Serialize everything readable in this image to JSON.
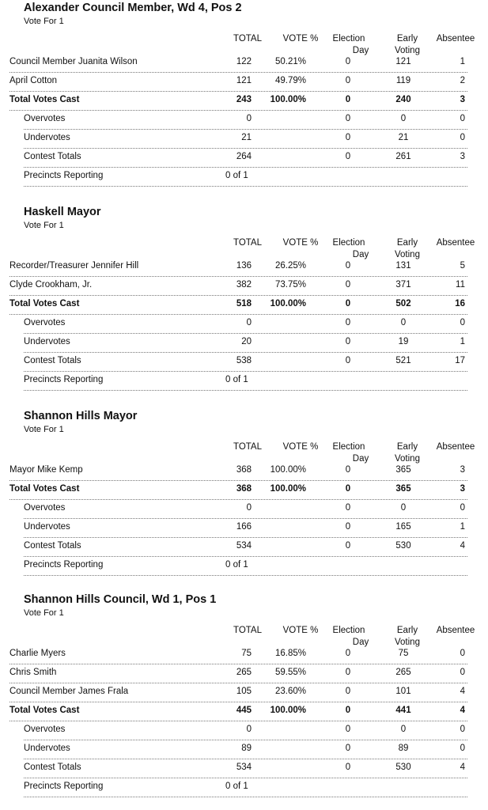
{
  "headers": {
    "total": "TOTAL",
    "pct": "VOTE %",
    "eday_1": "Election",
    "eday_2": "Day",
    "early_1": "Early",
    "early_2": "Voting",
    "abs": "Absentee"
  },
  "contests": [
    {
      "title": "Alexander Council Member, Wd 4, Pos 2",
      "vote_for": "Vote For 1",
      "rows": [
        {
          "name": "Council Member Juanita Wilson",
          "total": "122",
          "pct": "50.21%",
          "eday": "0",
          "early": "121",
          "abs": "1"
        },
        {
          "name": "April Cotton",
          "total": "121",
          "pct": "49.79%",
          "eday": "0",
          "early": "119",
          "abs": "2"
        },
        {
          "name": "Total Votes Cast",
          "total": "243",
          "pct": "100.00%",
          "eday": "0",
          "early": "240",
          "abs": "3"
        },
        {
          "name": "Overvotes",
          "total": "0",
          "eday": "0",
          "early": "0",
          "abs": "0"
        },
        {
          "name": "Undervotes",
          "total": "21",
          "eday": "0",
          "early": "21",
          "abs": "0"
        },
        {
          "name": "Contest Totals",
          "total": "264",
          "eday": "0",
          "early": "261",
          "abs": "3"
        },
        {
          "name": "Precincts Reporting",
          "precinct": "0 of 1"
        }
      ]
    },
    {
      "title": "Haskell Mayor",
      "vote_for": "Vote For 1",
      "rows": [
        {
          "name": "Recorder/Treasurer Jennifer Hill",
          "total": "136",
          "pct": "26.25%",
          "eday": "0",
          "early": "131",
          "abs": "5"
        },
        {
          "name": "Clyde Crookham, Jr.",
          "total": "382",
          "pct": "73.75%",
          "eday": "0",
          "early": "371",
          "abs": "11"
        },
        {
          "name": "Total Votes Cast",
          "total": "518",
          "pct": "100.00%",
          "eday": "0",
          "early": "502",
          "abs": "16"
        },
        {
          "name": "Overvotes",
          "total": "0",
          "eday": "0",
          "early": "0",
          "abs": "0"
        },
        {
          "name": "Undervotes",
          "total": "20",
          "eday": "0",
          "early": "19",
          "abs": "1"
        },
        {
          "name": "Contest Totals",
          "total": "538",
          "eday": "0",
          "early": "521",
          "abs": "17"
        },
        {
          "name": "Precincts Reporting",
          "precinct": "0 of 1"
        }
      ]
    },
    {
      "title": "Shannon Hills Mayor",
      "vote_for": "Vote For 1",
      "rows": [
        {
          "name": "Mayor Mike Kemp",
          "total": "368",
          "pct": "100.00%",
          "eday": "0",
          "early": "365",
          "abs": "3"
        },
        {
          "name": "Total Votes Cast",
          "total": "368",
          "pct": "100.00%",
          "eday": "0",
          "early": "365",
          "abs": "3"
        },
        {
          "name": "Overvotes",
          "total": "0",
          "eday": "0",
          "early": "0",
          "abs": "0"
        },
        {
          "name": "Undervotes",
          "total": "166",
          "eday": "0",
          "early": "165",
          "abs": "1"
        },
        {
          "name": "Contest Totals",
          "total": "534",
          "eday": "0",
          "early": "530",
          "abs": "4"
        },
        {
          "name": "Precincts Reporting",
          "precinct": "0 of 1"
        }
      ]
    },
    {
      "title": "Shannon Hills Council, Wd 1, Pos 1",
      "vote_for": "Vote For 1",
      "rows": [
        {
          "name": "Charlie Myers",
          "total": "75",
          "pct": "16.85%",
          "eday": "0",
          "early": "75",
          "abs": "0"
        },
        {
          "name": "Chris Smith",
          "total": "265",
          "pct": "59.55%",
          "eday": "0",
          "early": "265",
          "abs": "0"
        },
        {
          "name": "Council Member James Frala",
          "total": "105",
          "pct": "23.60%",
          "eday": "0",
          "early": "101",
          "abs": "4"
        },
        {
          "name": "Total Votes Cast",
          "total": "445",
          "pct": "100.00%",
          "eday": "0",
          "early": "441",
          "abs": "4"
        },
        {
          "name": "Overvotes",
          "total": "0",
          "eday": "0",
          "early": "0",
          "abs": "0"
        },
        {
          "name": "Undervotes",
          "total": "89",
          "eday": "0",
          "early": "89",
          "abs": "0"
        },
        {
          "name": "Contest Totals",
          "total": "534",
          "eday": "0",
          "early": "530",
          "abs": "4"
        },
        {
          "name": "Precincts Reporting",
          "precinct": "0 of 1"
        }
      ]
    }
  ]
}
